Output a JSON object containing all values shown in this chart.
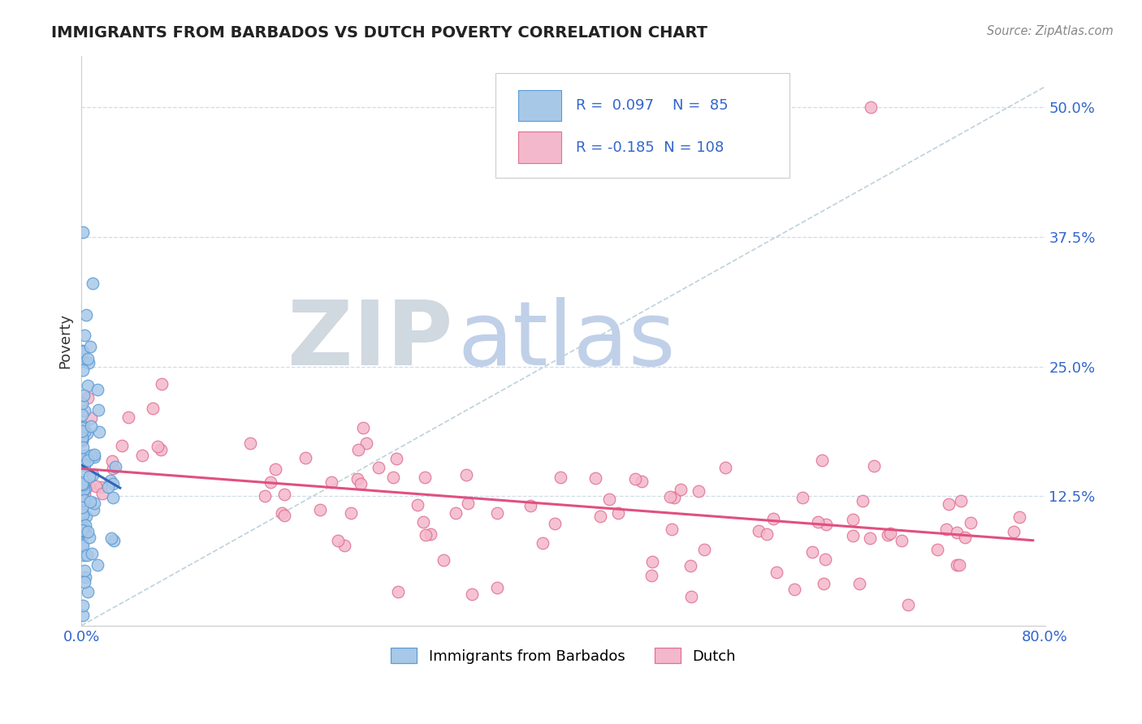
{
  "title": "IMMIGRANTS FROM BARBADOS VS DUTCH POVERTY CORRELATION CHART",
  "source_text": "Source: ZipAtlas.com",
  "ylabel": "Poverty",
  "series1_name": "Immigrants from Barbados",
  "series2_name": "Dutch",
  "series1_R": 0.097,
  "series1_N": 85,
  "series2_R": -0.185,
  "series2_N": 108,
  "xlim": [
    0.0,
    0.8
  ],
  "ylim": [
    0.0,
    0.55
  ],
  "ytick_values": [
    0.0,
    0.125,
    0.25,
    0.375,
    0.5
  ],
  "ytick_labels": [
    "",
    "12.5%",
    "25.0%",
    "37.5%",
    "50.0%"
  ],
  "color1_fill": "#a8c8e8",
  "color1_edge": "#5b9bd5",
  "color2_fill": "#f4b8cc",
  "color2_edge": "#e07090",
  "color1_line": "#3366bb",
  "color2_line": "#e05080",
  "legend_box_color": "#3366cc",
  "watermark_zip_color": "#d0d8e0",
  "watermark_atlas_color": "#c0d0e8",
  "background_color": "#ffffff",
  "grid_color": "#d0dde8",
  "diagonal_color": "#b8ccd8",
  "title_color": "#222222",
  "source_color": "#888888",
  "ylabel_color": "#333333",
  "tick_color": "#3366cc"
}
